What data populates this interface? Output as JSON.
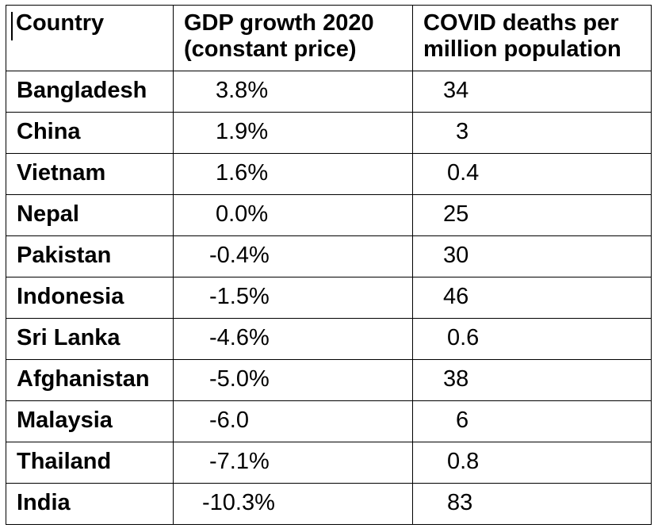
{
  "table": {
    "headers": {
      "country": "Country",
      "gdp_line1": "GDP growth 2020",
      "gdp_line2": "(constant price)",
      "deaths_line1": "COVID deaths per",
      "deaths_line2": "million population"
    },
    "rows": [
      {
        "country": "Bangladesh",
        "gdp": "3.8%",
        "deaths": "34"
      },
      {
        "country": "China",
        "gdp": "1.9%",
        "deaths": "3"
      },
      {
        "country": "Vietnam",
        "gdp": "1.6%",
        "deaths": "0.4"
      },
      {
        "country": "Nepal",
        "gdp": "0.0%",
        "deaths": "25"
      },
      {
        "country": "Pakistan",
        "gdp": "-0.4%",
        "deaths": "30"
      },
      {
        "country": "Indonesia",
        "gdp": "-1.5%",
        "deaths": "46"
      },
      {
        "country": "Sri Lanka",
        "gdp": "-4.6%",
        "deaths": "0.6"
      },
      {
        "country": "Afghanistan",
        "gdp": "-5.0%",
        "deaths": "38"
      },
      {
        "country": "Malaysia",
        "gdp": "-6.0",
        "deaths": "6"
      },
      {
        "country": "Thailand",
        "gdp": "-7.1%",
        "deaths": "0.8"
      },
      {
        "country": "India",
        "gdp": "-10.3%",
        "deaths": "83"
      }
    ]
  }
}
